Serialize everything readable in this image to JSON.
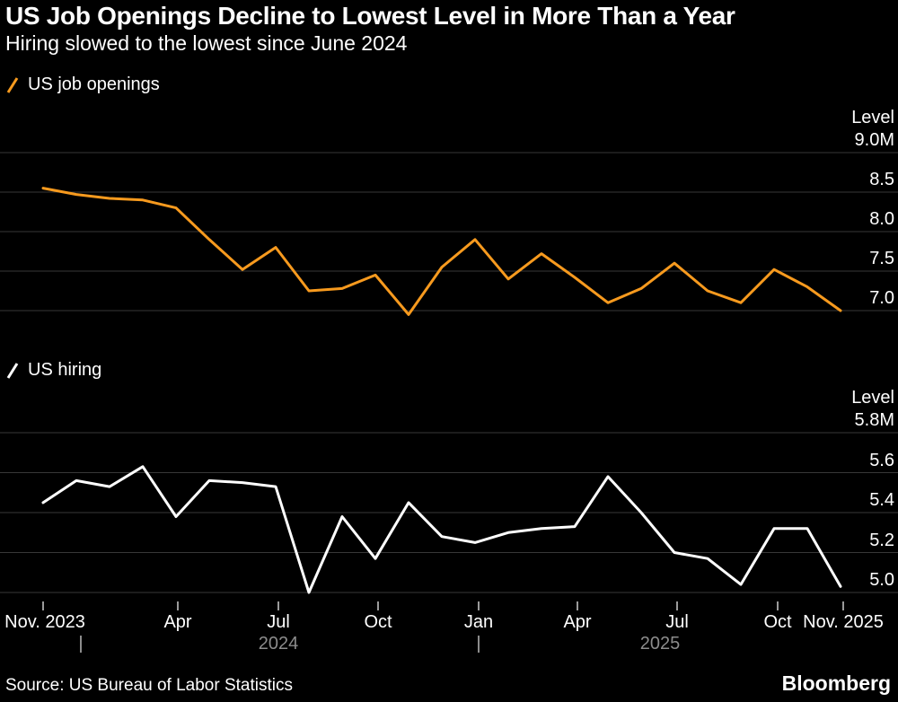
{
  "header": {
    "title": "US Job Openings Decline to Lowest Level in More Than a Year",
    "subtitle": "Hiring slowed to the lowest since June 2024"
  },
  "legends": [
    {
      "label": "US job openings",
      "color": "#F79A1E"
    },
    {
      "label": "US hiring",
      "color": "#FFFFFF"
    }
  ],
  "colors": {
    "background": "#000000",
    "grid": "#383838",
    "tick": "#9A9A9A",
    "year_text": "#8C8C8C",
    "openings_line": "#F79A1E",
    "hiring_line": "#FFFFFF"
  },
  "x_axis": {
    "tick_labels": [
      "Nov. 2023",
      "Apr",
      "Jul",
      "Oct",
      "Jan",
      "Apr",
      "Jul",
      "Oct",
      "Nov. 2025"
    ],
    "year_labels": [
      "2024",
      "2025"
    ]
  },
  "footer": {
    "source": "Source: US Bureau of Labor Statistics",
    "brand": "Bloomberg"
  },
  "chart_data": [
    {
      "type": "line",
      "name": "US job openings",
      "color": "#F79A1E",
      "axis_label": "Level",
      "unit": "M",
      "ylim": [
        6.8,
        9.0
      ],
      "yticks": [
        9.0,
        8.5,
        8.0,
        7.5,
        7.0
      ],
      "ytick_labels": [
        "9.0M",
        "8.5",
        "8.0",
        "7.5",
        "7.0"
      ],
      "x": [
        "Nov 2023",
        "Dec 2023",
        "Jan 2024",
        "Feb 2024",
        "Mar 2024",
        "Apr 2024",
        "May 2024",
        "Jun 2024",
        "Jul 2024",
        "Aug 2024",
        "Sep 2024",
        "Oct 2024",
        "Nov 2024",
        "Dec 2024",
        "Jan 2025",
        "Feb 2025",
        "Mar 2025",
        "Apr 2025",
        "May 2025",
        "Jun 2025",
        "Jul 2025",
        "Aug 2025",
        "Sep 2025",
        "Oct 2025",
        "Nov 2025"
      ],
      "values": [
        8.55,
        8.47,
        8.42,
        8.4,
        8.3,
        7.9,
        7.52,
        7.8,
        7.25,
        7.28,
        7.45,
        6.95,
        7.55,
        7.9,
        7.4,
        7.72,
        7.42,
        7.1,
        7.28,
        7.6,
        7.25,
        7.1,
        7.52,
        7.3,
        7.0
      ]
    },
    {
      "type": "line",
      "name": "US hiring",
      "color": "#FFFFFF",
      "axis_label": "Level",
      "unit": "M",
      "ylim": [
        4.9,
        5.8
      ],
      "yticks": [
        5.8,
        5.6,
        5.4,
        5.2,
        5.0
      ],
      "ytick_labels": [
        "5.8M",
        "5.6",
        "5.4",
        "5.2",
        "5.0"
      ],
      "x": [
        "Nov 2023",
        "Dec 2023",
        "Jan 2024",
        "Feb 2024",
        "Mar 2024",
        "Apr 2024",
        "May 2024",
        "Jun 2024",
        "Jul 2024",
        "Aug 2024",
        "Sep 2024",
        "Oct 2024",
        "Nov 2024",
        "Dec 2024",
        "Jan 2025",
        "Feb 2025",
        "Mar 2025",
        "Apr 2025",
        "May 2025",
        "Jun 2025",
        "Jul 2025",
        "Aug 2025",
        "Sep 2025",
        "Oct 2025",
        "Nov 2025"
      ],
      "values": [
        5.45,
        5.56,
        5.53,
        5.63,
        5.38,
        5.56,
        5.55,
        5.53,
        5.0,
        5.38,
        5.17,
        5.45,
        5.28,
        5.25,
        5.3,
        5.32,
        5.33,
        5.58,
        5.4,
        5.2,
        5.17,
        5.04,
        5.32,
        5.32,
        5.03
      ]
    }
  ]
}
